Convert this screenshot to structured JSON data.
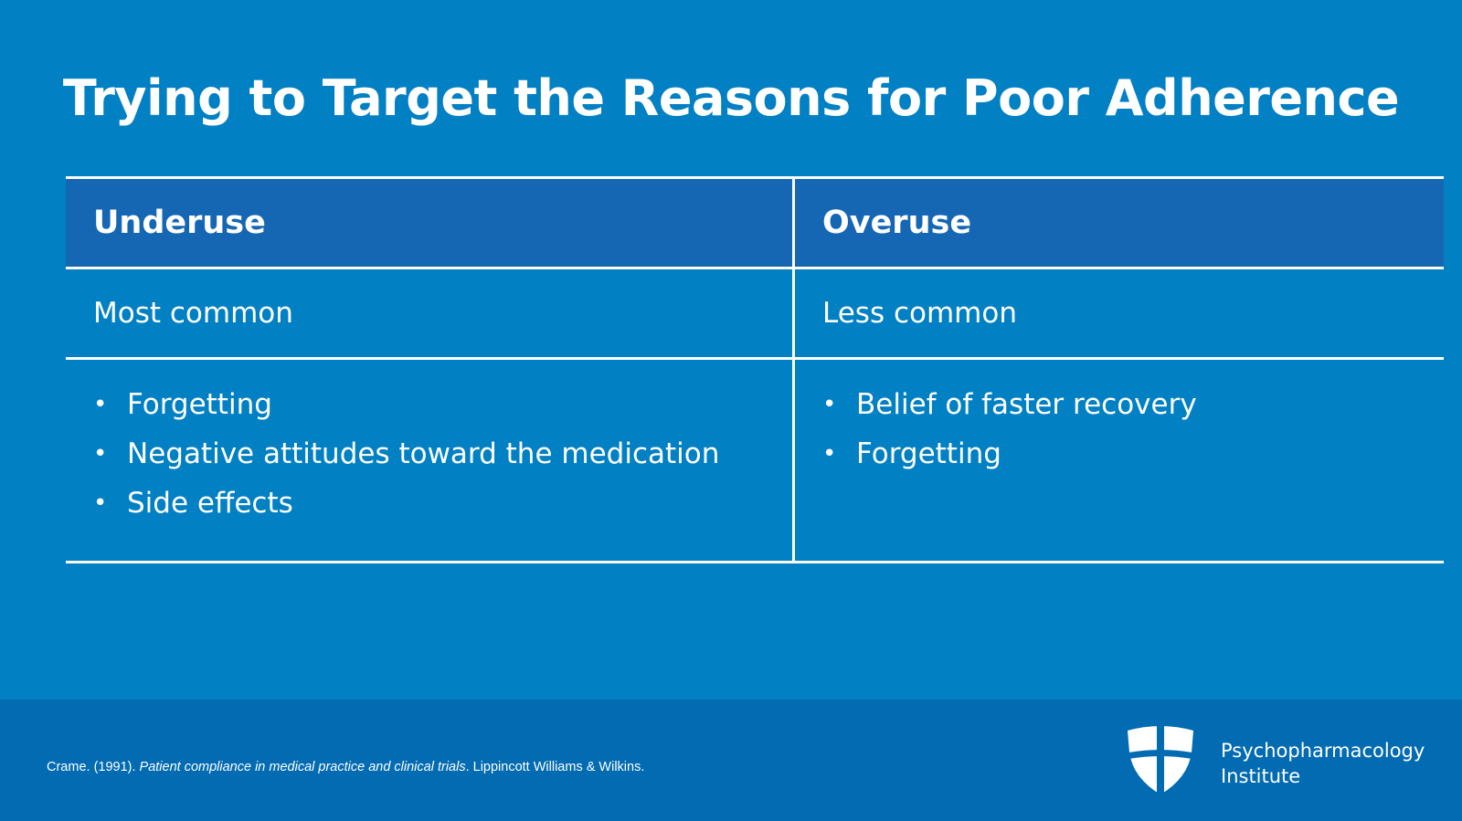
{
  "slide": {
    "title": "Trying to Target the Reasons for Poor Adherence"
  },
  "table": {
    "columns": [
      {
        "header": "Underuse",
        "frequency": "Most common",
        "reasons": [
          "Forgetting",
          "Negative attitudes toward the medication",
          "Side effects"
        ]
      },
      {
        "header": "Overuse",
        "frequency": "Less common",
        "reasons": [
          "Belief of faster recovery",
          "Forgetting"
        ]
      }
    ],
    "bullet_glyph": "•"
  },
  "footer": {
    "citation_author": "Crame. (1991). ",
    "citation_title": "Patient compliance in medical practice and clinical trials",
    "citation_publisher": ". Lippincott Williams & Wilkins.",
    "logo_line1": "Psychopharmacology",
    "logo_line2": "Institute",
    "logo_icon": "shield-cross-icon"
  },
  "colors": {
    "background": "#0180c3",
    "header_row": "#1567b3",
    "footer_band": "#026bb1",
    "text": "#ffffff"
  }
}
